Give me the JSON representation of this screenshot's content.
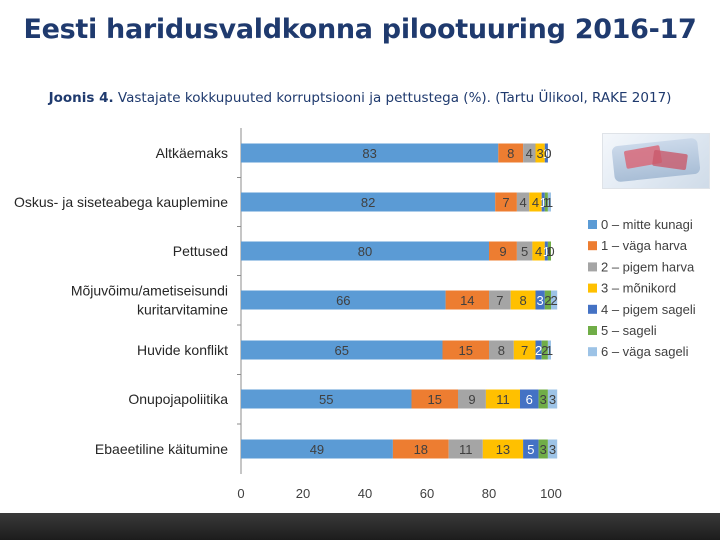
{
  "slide": {
    "title": "Eesti haridusvaldkonna pilootuuring 2016-17",
    "subtitle_bold": "Joonis 4.",
    "subtitle_rest": " Vastajate kokkupuuted korruptsiooni ja pettustega (%). (Tartu Ülikool, RAKE 2017)"
  },
  "chart_data": {
    "type": "bar",
    "orientation": "horizontal",
    "stacked": true,
    "title": "",
    "xlabel": "",
    "ylabel": "",
    "xlim": [
      0,
      100
    ],
    "x_ticks": [
      "0",
      "20",
      "40",
      "60",
      "80",
      "100"
    ],
    "legend_position": "right",
    "categories": [
      [
        "Altkäemaks"
      ],
      [
        "Oskus- ja siseteabega kauplemine"
      ],
      [
        "Pettused"
      ],
      [
        "Mõjuvõimu/ametiseisundi",
        "kuritarvitamine"
      ],
      [
        "Huvide konflikt"
      ],
      [
        "Onupojapoliitika"
      ],
      [
        "Ebaeetiline käitumine"
      ]
    ],
    "series": [
      {
        "name": "0 – mitte kunagi",
        "color": "#5B9BD5",
        "values": [
          83,
          82,
          80,
          66,
          65,
          55,
          49
        ]
      },
      {
        "name": "1 – väga harva",
        "color": "#ED7D31",
        "values": [
          8,
          7,
          9,
          14,
          15,
          15,
          18
        ]
      },
      {
        "name": "2 – pigem harva",
        "color": "#A5A5A5",
        "values": [
          4,
          4,
          5,
          7,
          8,
          9,
          11
        ]
      },
      {
        "name": "3 – mõnikord",
        "color": "#FFC000",
        "values": [
          3,
          4,
          4,
          8,
          7,
          11,
          13
        ]
      },
      {
        "name": "4 – pigem sageli",
        "color": "#4472C4",
        "values": [
          1,
          1,
          1,
          3,
          2,
          6,
          5
        ]
      },
      {
        "name": "5 – sageli",
        "color": "#70AD47",
        "values": [
          0,
          1,
          1,
          2,
          2,
          3,
          3
        ]
      },
      {
        "name": "6 – väga sageli",
        "color": "#9DC3E6",
        "values": [
          0,
          1,
          0,
          2,
          1,
          3,
          3
        ]
      }
    ]
  }
}
